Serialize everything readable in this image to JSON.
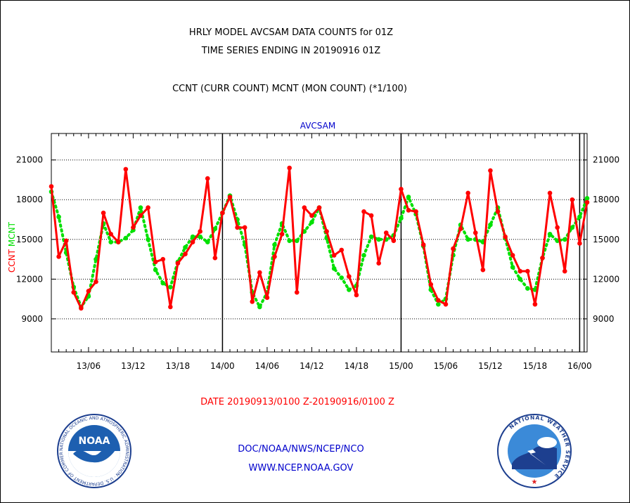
{
  "title_line1": "HRLY MODEL AVCSAM DATA COUNTS for 01Z",
  "title_line2": "TIME SERIES ENDING IN 20190916 01Z",
  "subtitle": "CCNT (CURR COUNT) MCNT (MON COUNT) (*1/100)",
  "date_range": "DATE 20190913/0100 Z-20190916/0100 Z",
  "footer_line1": "DOC/NOAA/NWS/NCEP/NCO",
  "footer_line2": "WWW.NCEP.NOAA.GOV",
  "logos": {
    "left_text": "NOAA",
    "left_ring_text": "NATIONAL OCEANIC AND ATMOSPHERIC ADMINISTRATION · U.S. DEPARTMENT OF COMMERCE ·",
    "right_ring_text": "NATIONAL WEATHER SERVICE"
  },
  "colors": {
    "ccnt": "#ff0000",
    "mcnt": "#00e000",
    "panel_title": "#0000cc",
    "footer": "#0000cc"
  },
  "chart_data": {
    "type": "line",
    "title": "AVCSAM",
    "ylabel_left": [
      "CCNT",
      "MCNT"
    ],
    "ylim": [
      6500,
      23000
    ],
    "yticks": [
      9000,
      12000,
      15000,
      18000,
      21000
    ],
    "xlim": [
      0,
      72
    ],
    "xticks": [
      {
        "x": 5,
        "label": "13/06"
      },
      {
        "x": 11,
        "label": "13/12"
      },
      {
        "x": 17,
        "label": "13/18"
      },
      {
        "x": 23,
        "label": "14/00"
      },
      {
        "x": 29,
        "label": "14/06"
      },
      {
        "x": 35,
        "label": "14/12"
      },
      {
        "x": 41,
        "label": "14/18"
      },
      {
        "x": 47,
        "label": "15/00"
      },
      {
        "x": 53,
        "label": "15/06"
      },
      {
        "x": 59,
        "label": "15/12"
      },
      {
        "x": 65,
        "label": "15/18"
      },
      {
        "x": 71,
        "label": "16/00"
      }
    ],
    "day_boundaries": [
      23,
      47,
      71
    ],
    "grid": true,
    "series": [
      {
        "name": "CCNT",
        "color": "#ff0000",
        "style": "solid",
        "values": [
          19000,
          13700,
          14900,
          11000,
          9800,
          11100,
          11800,
          17000,
          15400,
          14800,
          20300,
          15900,
          16800,
          17400,
          13300,
          13500,
          9900,
          13200,
          13900,
          14800,
          15600,
          19600,
          13600,
          17000,
          18200,
          15900,
          15900,
          10300,
          12500,
          10600,
          13700,
          15400,
          20400,
          11000,
          17400,
          16800,
          17400,
          15600,
          13800,
          14200,
          12200,
          10800,
          17100,
          16800,
          13200,
          15500,
          14900,
          18800,
          17200,
          17100,
          14600,
          11600,
          10400,
          10100,
          14300,
          15800,
          18500,
          15500,
          12700,
          20200,
          17100,
          15200,
          13800,
          12600,
          12600,
          10100,
          13600,
          18500,
          15900,
          12600,
          18000,
          14700,
          17800
        ]
      },
      {
        "name": "MCNT",
        "color": "#00e000",
        "style": "dotted",
        "values": [
          18600,
          16700,
          14000,
          11400,
          9900,
          10700,
          13500,
          16200,
          14800,
          14800,
          15100,
          15700,
          17400,
          15000,
          12700,
          11700,
          11400,
          13300,
          14400,
          15200,
          15200,
          14800,
          15800,
          17000,
          18300,
          16500,
          14600,
          11000,
          9900,
          11000,
          14600,
          16200,
          14900,
          14900,
          15600,
          16300,
          17400,
          15100,
          12800,
          12100,
          11200,
          11500,
          13800,
          15200,
          15000,
          15000,
          15300,
          16600,
          18200,
          16900,
          14500,
          11200,
          10100,
          10500,
          13800,
          16100,
          15000,
          15000,
          14800,
          16100,
          17400,
          15100,
          12900,
          12000,
          11300,
          11200,
          13600,
          15400,
          14900,
          15000,
          15900,
          16700,
          18100
        ]
      }
    ]
  }
}
